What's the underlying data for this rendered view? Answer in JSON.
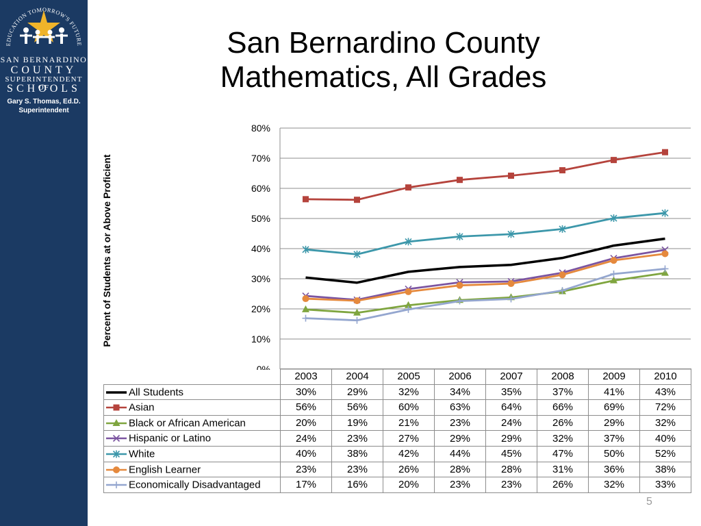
{
  "logo": {
    "arc_text": "EDUCATION TOMORROW'S FUTURE",
    "line1": "SAN BERNARDINO",
    "line2": "COUNTY",
    "line3": "SUPERINTENDENT OF",
    "line4": "SCHOOLS",
    "superintendent_name": "Gary S. Thomas, Ed.D.",
    "superintendent_title": "Superintendent"
  },
  "title": {
    "line1": "San Bernardino County",
    "line2": "Mathematics, All Grades"
  },
  "page_number": "5",
  "chart_data": {
    "type": "line",
    "title": "San Bernardino County Mathematics, All Grades",
    "xlabel": "",
    "ylabel": "Percent of Students at or Above Proficient",
    "categories": [
      "2003",
      "2004",
      "2005",
      "2006",
      "2007",
      "2008",
      "2009",
      "2010"
    ],
    "ylim": [
      0,
      80
    ],
    "yticks": [
      "0%",
      "10%",
      "20%",
      "30%",
      "40%",
      "50%",
      "60%",
      "70%",
      "80%"
    ],
    "grid": true,
    "legend": "data table below chart",
    "series": [
      {
        "name": "All Students",
        "color": "#000000",
        "marker": "none",
        "values": [
          30.4,
          28.7,
          32.3,
          33.9,
          34.6,
          36.9,
          41.0,
          43.3
        ],
        "labels": [
          "30%",
          "29%",
          "32%",
          "34%",
          "35%",
          "37%",
          "41%",
          "43%"
        ]
      },
      {
        "name": "Asian",
        "color": "#b5433c",
        "marker": "square",
        "values": [
          56.4,
          56.2,
          60.3,
          62.8,
          64.2,
          66.0,
          69.4,
          72.0
        ],
        "labels": [
          "56%",
          "56%",
          "60%",
          "63%",
          "64%",
          "66%",
          "69%",
          "72%"
        ]
      },
      {
        "name": "Black or African American",
        "color": "#7fa53f",
        "marker": "triangle",
        "values": [
          19.8,
          18.7,
          21.2,
          22.9,
          23.8,
          25.8,
          29.4,
          31.9
        ],
        "labels": [
          "20%",
          "19%",
          "21%",
          "23%",
          "24%",
          "26%",
          "29%",
          "32%"
        ]
      },
      {
        "name": "Hispanic or Latino",
        "color": "#7b54a0",
        "marker": "x",
        "values": [
          24.3,
          23.0,
          26.6,
          28.8,
          29.1,
          32.0,
          36.8,
          39.6
        ],
        "labels": [
          "24%",
          "23%",
          "27%",
          "29%",
          "29%",
          "32%",
          "37%",
          "40%"
        ]
      },
      {
        "name": "White",
        "color": "#3c97aa",
        "marker": "star",
        "values": [
          39.7,
          38.1,
          42.3,
          44.0,
          44.8,
          46.5,
          50.1,
          51.8
        ],
        "labels": [
          "40%",
          "38%",
          "42%",
          "44%",
          "45%",
          "47%",
          "50%",
          "52%"
        ]
      },
      {
        "name": "English Learner",
        "color": "#e5893d",
        "marker": "circle",
        "values": [
          23.4,
          22.7,
          25.7,
          27.8,
          28.4,
          31.3,
          36.1,
          38.3
        ],
        "labels": [
          "23%",
          "23%",
          "26%",
          "28%",
          "28%",
          "31%",
          "36%",
          "38%"
        ]
      },
      {
        "name": "Economically Disadvantaged",
        "color": "#94a6cf",
        "marker": "plus",
        "values": [
          16.9,
          16.2,
          19.8,
          22.6,
          23.3,
          26.1,
          31.6,
          33.3
        ],
        "labels": [
          "17%",
          "16%",
          "20%",
          "23%",
          "23%",
          "26%",
          "32%",
          "33%"
        ]
      }
    ]
  }
}
